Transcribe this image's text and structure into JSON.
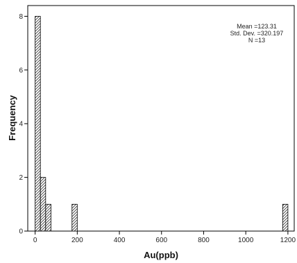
{
  "chart_data": {
    "type": "bar",
    "subtype": "histogram",
    "xlabel": "Au(ppb)",
    "ylabel": "Frequency",
    "xlim": [
      -35,
      1230
    ],
    "ylim": [
      0,
      8.4
    ],
    "x_ticks": [
      0,
      200,
      400,
      600,
      800,
      1000,
      1200
    ],
    "y_ticks": [
      0,
      2,
      4,
      6,
      8
    ],
    "bin_width": 25,
    "bins": [
      {
        "start": 0,
        "end": 25,
        "count": 8
      },
      {
        "start": 25,
        "end": 50,
        "count": 2
      },
      {
        "start": 50,
        "end": 75,
        "count": 1
      },
      {
        "start": 175,
        "end": 200,
        "count": 1
      },
      {
        "start": 1175,
        "end": 1200,
        "count": 1
      }
    ],
    "grid": false,
    "bar_fill": "hatched",
    "stats_box": {
      "placement": "top-right",
      "lines": [
        "Mean =123.31",
        "Std. Dev. =320.197",
        "N =13"
      ]
    }
  }
}
